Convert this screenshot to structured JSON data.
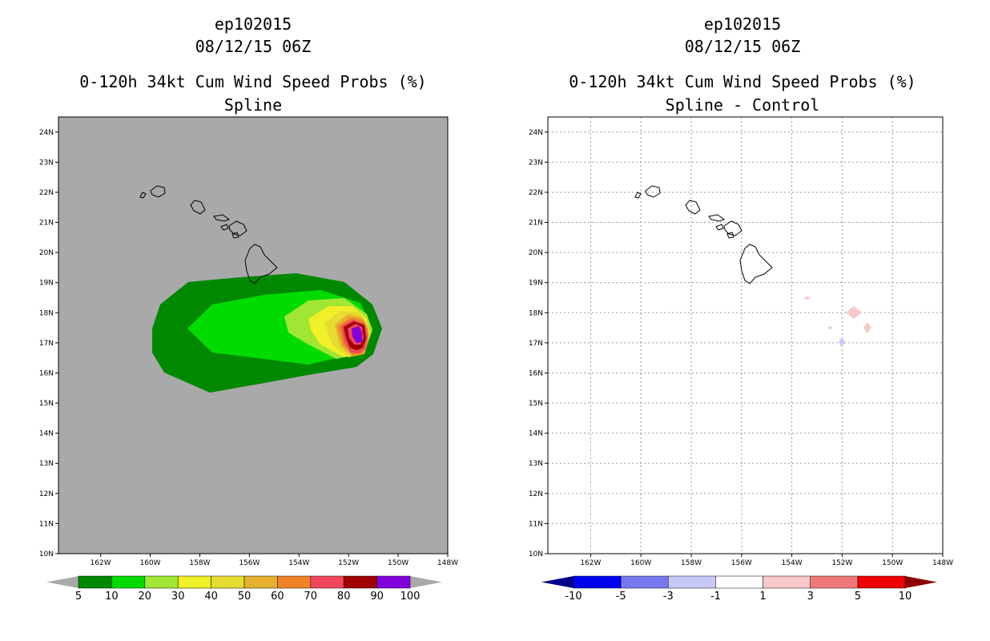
{
  "chart_data": [
    {
      "type": "contour-map",
      "title": [
        "ep102015",
        "08/12/15 06Z",
        "0-120h 34kt Cum Wind Speed Probs (%)",
        "Spline"
      ],
      "x_ticks": [
        "162W",
        "160W",
        "158W",
        "156W",
        "154W",
        "152W",
        "150W",
        "148W"
      ],
      "y_ticks": [
        "10N",
        "11N",
        "12N",
        "13N",
        "14N",
        "15N",
        "16N",
        "17N",
        "18N",
        "19N",
        "20N",
        "21N",
        "22N",
        "23N",
        "24N"
      ],
      "xlim_lon_west": [
        163.7,
        148
      ],
      "ylim_lat": [
        10,
        24.5
      ],
      "colorbar_labels": [
        "5",
        "10",
        "20",
        "30",
        "40",
        "50",
        "60",
        "70",
        "80",
        "90",
        "100"
      ],
      "colorbar_colors": [
        "#008800",
        "#00dc00",
        "#a0e632",
        "#f0f028",
        "#e6dc32",
        "#e6af2d",
        "#f08228",
        "#f0465a",
        "#a00000",
        "#8200dc"
      ],
      "background_color": "#a9a9a9",
      "peak_center": {
        "lon_west": 151.5,
        "lat": 17.3
      }
    },
    {
      "type": "contour-map",
      "title": [
        "ep102015",
        "08/12/15 06Z",
        "0-120h 34kt Cum Wind Speed Probs (%)",
        "Spline - Control"
      ],
      "x_ticks": [
        "162W",
        "160W",
        "158W",
        "156W",
        "154W",
        "152W",
        "150W",
        "148W"
      ],
      "y_ticks": [
        "10N",
        "11N",
        "12N",
        "13N",
        "14N",
        "15N",
        "16N",
        "17N",
        "18N",
        "19N",
        "20N",
        "21N",
        "22N",
        "23N",
        "24N"
      ],
      "xlim_lon_west": [
        163.7,
        148
      ],
      "ylim_lat": [
        10,
        24.5
      ],
      "grid": true,
      "colorbar_labels": [
        "-10",
        "-5",
        "-3",
        "-1",
        "1",
        "3",
        "5",
        "10"
      ],
      "colorbar_colors": [
        "#00008c",
        "#0000f0",
        "#7878f0",
        "#c8c8f8",
        "#ffffff",
        "#f8c8c8",
        "#f07878",
        "#f00000",
        "#8c0000"
      ],
      "background_color": "#ffffff"
    }
  ]
}
